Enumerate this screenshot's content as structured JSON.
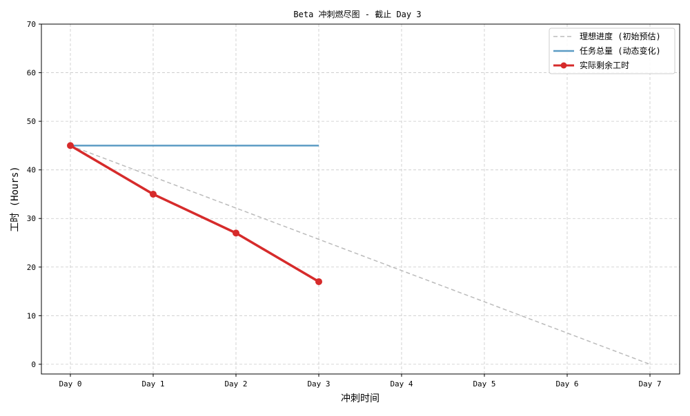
{
  "chart_data": {
    "type": "line",
    "title": "Beta 冲刺燃尽图 - 截止 Day 3",
    "xlabel": "冲刺时间",
    "ylabel": "工时 (Hours)",
    "categories": [
      "Day 0",
      "Day 1",
      "Day 2",
      "Day 3",
      "Day 4",
      "Day 5",
      "Day 6",
      "Day 7"
    ],
    "ylim": [
      -2,
      70
    ],
    "yticks": [
      0,
      10,
      20,
      30,
      40,
      50,
      60,
      70
    ],
    "grid": true,
    "legend_position": "top-right",
    "series": [
      {
        "name": "理想进度 (初始预估)",
        "x": [
          0,
          7
        ],
        "values": [
          45,
          0
        ],
        "color": "#bbbbbb",
        "style": "dashed",
        "marker": false
      },
      {
        "name": "任务总量 (动态变化)",
        "x": [
          0,
          1,
          2,
          3
        ],
        "values": [
          45,
          45,
          45,
          45
        ],
        "color": "#5b9bc4",
        "style": "solid",
        "marker": false
      },
      {
        "name": "实际剩余工时",
        "x": [
          0,
          1,
          2,
          3
        ],
        "values": [
          45,
          35,
          27,
          17
        ],
        "color": "#d62b2b",
        "style": "solid",
        "marker": true
      }
    ]
  }
}
